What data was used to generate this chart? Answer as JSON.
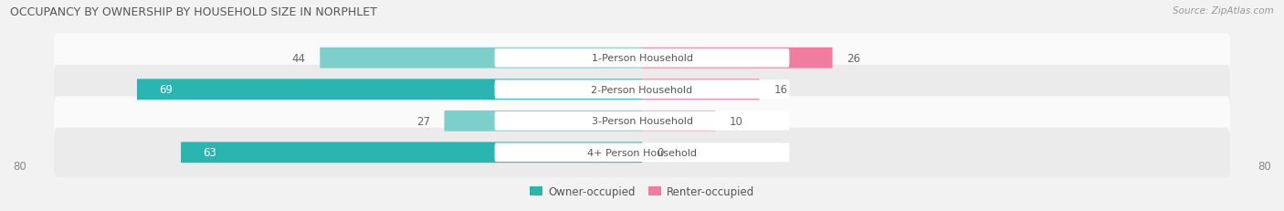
{
  "title": "OCCUPANCY BY OWNERSHIP BY HOUSEHOLD SIZE IN NORPHLET",
  "source": "Source: ZipAtlas.com",
  "categories": [
    "1-Person Household",
    "2-Person Household",
    "3-Person Household",
    "4+ Person Household"
  ],
  "owner_values": [
    44,
    69,
    27,
    63
  ],
  "renter_values": [
    26,
    16,
    10,
    0
  ],
  "owner_color_dark": "#2ab5b0",
  "owner_color_light": "#7dcfcc",
  "renter_color_dark": "#f07ca0",
  "renter_color_light": "#f5b0c8",
  "owner_label": "Owner-occupied",
  "renter_label": "Renter-occupied",
  "x_max": 80,
  "bg_color": "#f2f2f2",
  "row_bg_light": "#fafafa",
  "row_bg_dark": "#ebebeb",
  "label_fontsize": 8.5,
  "title_fontsize": 9,
  "source_fontsize": 7.5,
  "center_label_color": "#555555",
  "value_in_bar_color": "#ffffff",
  "value_outside_bar_color": "#666666",
  "large_threshold": 50
}
